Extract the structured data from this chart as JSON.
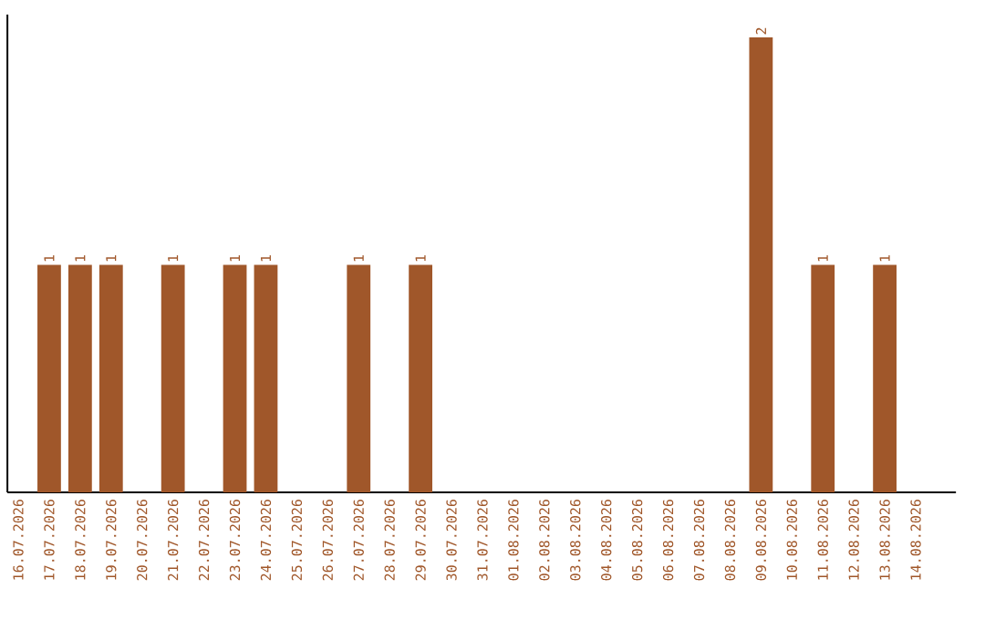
{
  "chart_data": {
    "type": "bar",
    "categories": [
      "16.07.2026",
      "17.07.2026",
      "18.07.2026",
      "19.07.2026",
      "20.07.2026",
      "21.07.2026",
      "22.07.2026",
      "23.07.2026",
      "24.07.2026",
      "25.07.2026",
      "26.07.2026",
      "27.07.2026",
      "28.07.2026",
      "29.07.2026",
      "30.07.2026",
      "31.07.2026",
      "01.08.2026",
      "02.08.2026",
      "03.08.2026",
      "04.08.2026",
      "05.08.2026",
      "06.08.2026",
      "07.08.2026",
      "08.08.2026",
      "09.08.2026",
      "10.08.2026",
      "11.08.2026",
      "12.08.2026",
      "13.08.2026",
      "14.08.2026"
    ],
    "values": [
      0,
      1,
      1,
      1,
      0,
      1,
      0,
      1,
      1,
      0,
      0,
      1,
      0,
      1,
      0,
      0,
      0,
      0,
      0,
      0,
      0,
      0,
      0,
      0,
      2,
      0,
      1,
      0,
      1,
      0
    ],
    "value_labels": [
      null,
      "1",
      "1",
      "1",
      null,
      "1",
      null,
      "1",
      "1",
      null,
      null,
      "1",
      null,
      "1",
      null,
      null,
      null,
      null,
      null,
      null,
      null,
      null,
      null,
      null,
      "2",
      null,
      "1",
      null,
      "1",
      null
    ],
    "color": "#a0572a",
    "ylim": [
      0,
      2.1
    ]
  }
}
